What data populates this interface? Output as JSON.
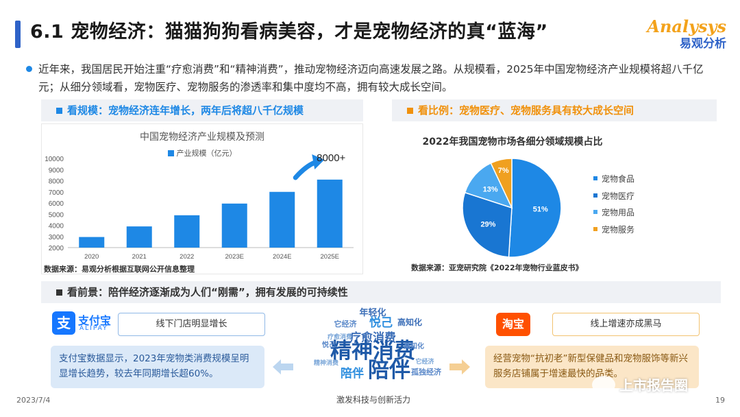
{
  "title": "6.1 宠物经济：猫猫狗狗看病美容，才是宠物经济的真“蓝海”",
  "logo": {
    "main": "Analysys",
    "sub": "易观分析"
  },
  "intro": "近年来，我国居民开始注重“疗愈消费”和“精神消费”，推动宠物经济迈向高速发展之路。从规模看，2025年中国宠物经济产业规模将超八千亿元；从细分领域看，宠物医疗、宠物服务的渗透率和集中度均不高，拥有较大成长空间。",
  "sections": {
    "left": "看规模：宠物经济连年增长，两年后将超八千亿规模",
    "right": "看比例：宠物医疗、宠物服务具有较大成长空间",
    "bottom": "看前景：陪伴经济逐渐成为人们“刚需”，拥有发展的可持续性"
  },
  "colors": {
    "blue": "#1e88e5",
    "orange": "#f0910c",
    "title_bar": "#2f63c8"
  },
  "chart_data": [
    {
      "type": "bar",
      "title": "中国宠物经济产业规模及预测",
      "series": [
        {
          "name": "产业规模（亿元）",
          "values": [
            2950,
            3900,
            4900,
            5950,
            7000,
            8100
          ]
        }
      ],
      "categories": [
        "2020",
        "2021",
        "2022",
        "2023E",
        "2024E",
        "2025E"
      ],
      "yticks": [
        "10000",
        "9000",
        "8000",
        "7000",
        "6000",
        "5000",
        "4000",
        "3000",
        "2000"
      ],
      "ylim": [
        2000,
        10000
      ],
      "annotation": "8000+",
      "source": "数据来源：易观分析根据互联网公开信息整理"
    },
    {
      "type": "pie",
      "title": "2022年我国宠物市场各细分领域规模占比",
      "slices": [
        {
          "label": "宠物食品",
          "value": 51,
          "text": "51%",
          "color": "#1e88e5"
        },
        {
          "label": "宠物医疗",
          "value": 29,
          "text": "29%",
          "color": "#1976d2"
        },
        {
          "label": "宠物用品",
          "value": 13,
          "text": "13%",
          "color": "#4aa8f0"
        },
        {
          "label": "宠物服务",
          "value": 7,
          "text": "7%",
          "color": "#f0a020"
        }
      ],
      "source": "数据来源：亚宠研究院《2022年宠物行业蓝皮书》"
    }
  ],
  "bottom": {
    "alipay": {
      "cn": "支付宝",
      "en": "ALIPAY",
      "icon": "支"
    },
    "left_tag": "线下门店明显增长",
    "left_text": "支付宝数据显示，2023年宠物类消费规模呈明显增长趋势，较去年同期增长超60%。",
    "taobao": "淘宝",
    "right_tag": "线上增速亦成黑马",
    "right_text": "经营宠物“抗初老”新型保健品和宠物服饰等新兴服务店铺属于增速最快的品类。",
    "cloud_caption": "激发科技与创新活力",
    "cloud_words": [
      "年轻化",
      "它经济",
      "悦己",
      "高知化",
      "疗愈消费",
      "精神消费",
      "陪伴",
      "陪伴",
      "孤独经济",
      "高知化",
      "悦己",
      "疗愈消费",
      "它经济",
      "精神消费"
    ]
  },
  "footer": {
    "date": "2023/7/4",
    "page": "19"
  },
  "watermark": "上市报告圈"
}
